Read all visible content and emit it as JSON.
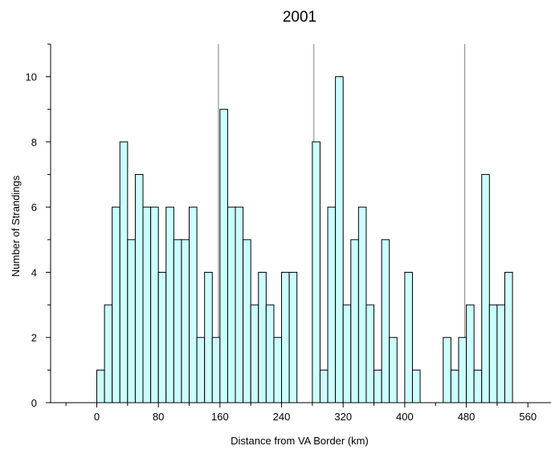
{
  "chart_data": {
    "type": "bar",
    "title": "2001",
    "xlabel": "Distance from VA Border (km)",
    "ylabel": "Number of Strandings",
    "x_ticks": [
      0,
      80,
      160,
      240,
      320,
      400,
      480,
      560
    ],
    "y_ticks": [
      0,
      2,
      4,
      6,
      8,
      10
    ],
    "xlim": [
      -60,
      590
    ],
    "ylim": [
      0,
      11
    ],
    "bin_width": 10,
    "bin_start": -40,
    "bin_values": [
      0,
      0,
      0,
      0,
      1,
      3,
      6,
      8,
      5,
      7,
      6,
      6,
      4,
      6,
      5,
      5,
      6,
      2,
      4,
      2,
      9,
      6,
      6,
      5,
      3,
      4,
      3,
      2,
      4,
      4,
      0,
      0,
      8,
      1,
      6,
      10,
      3,
      5,
      6,
      3,
      1,
      5,
      2,
      0,
      4,
      1,
      0,
      0,
      0,
      2,
      1,
      2,
      3,
      1,
      7,
      3,
      3,
      4
    ],
    "reference_lines_x": [
      158,
      282,
      478
    ],
    "grid": false,
    "bar_color": "#ccffff",
    "bar_edge_color": "#000000",
    "reference_line_color": "#808080"
  }
}
